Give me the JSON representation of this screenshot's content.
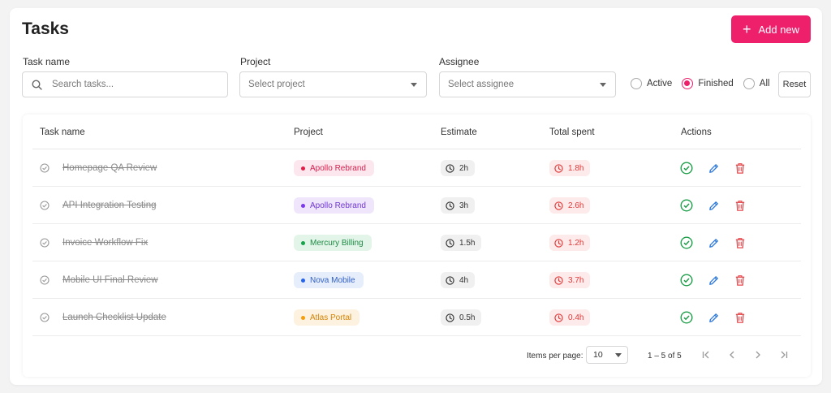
{
  "header": {
    "title": "Tasks",
    "add_label": "Add new"
  },
  "filters": {
    "task_label": "Task name",
    "search_placeholder": "Search tasks...",
    "project_label": "Project",
    "project_value": "Select project",
    "assignee_label": "Assignee",
    "assignee_value": "Select assignee",
    "status_options": [
      "Active",
      "Finished",
      "All"
    ],
    "status_selected": "Finished",
    "reset_label": "Reset"
  },
  "table": {
    "columns": [
      "Task name",
      "Project",
      "Estimate",
      "Total spent",
      "Actions"
    ],
    "rows": [
      {
        "name": "Homepage QA Review",
        "project": "Apollo Rebrand",
        "project_color": "#e11d48",
        "project_bg": "#fde7ee",
        "project_text": "#d6204f",
        "estimate": "2h",
        "spent": "1.8h"
      },
      {
        "name": "API Integration Testing",
        "project": "Apollo Rebrand",
        "project_color": "#7c3aed",
        "project_bg": "#efe6fb",
        "project_text": "#7038d3",
        "estimate": "3h",
        "spent": "2.6h"
      },
      {
        "name": "Invoice Workflow Fix",
        "project": "Mercury Billing",
        "project_color": "#16a34a",
        "project_bg": "#e3f5e8",
        "project_text": "#1e8a45",
        "estimate": "1.5h",
        "spent": "1.2h"
      },
      {
        "name": "Mobile UI Final Review",
        "project": "Nova Mobile",
        "project_color": "#2563eb",
        "project_bg": "#e6eefb",
        "project_text": "#2f5fc4",
        "estimate": "4h",
        "spent": "3.7h"
      },
      {
        "name": "Launch Checklist Update",
        "project": "Atlas Portal",
        "project_color": "#f59e0b",
        "project_bg": "#fdf2df",
        "project_text": "#d38408",
        "estimate": "0.5h",
        "spent": "0.4h"
      }
    ]
  },
  "pagination": {
    "items_per_page_label": "Items per page:",
    "items_per_page": "10",
    "range": "1 – 5 of 5"
  },
  "colors": {
    "accent": "#ee1f6b",
    "done_green": "#1e9e4a",
    "edit_blue": "#2f7ad8",
    "delete_red": "#e5484d"
  },
  "icons": {
    "search": "search-icon",
    "check": "check-circle-icon",
    "clock": "clock-icon",
    "edit": "pencil-icon",
    "delete": "trash-icon"
  }
}
